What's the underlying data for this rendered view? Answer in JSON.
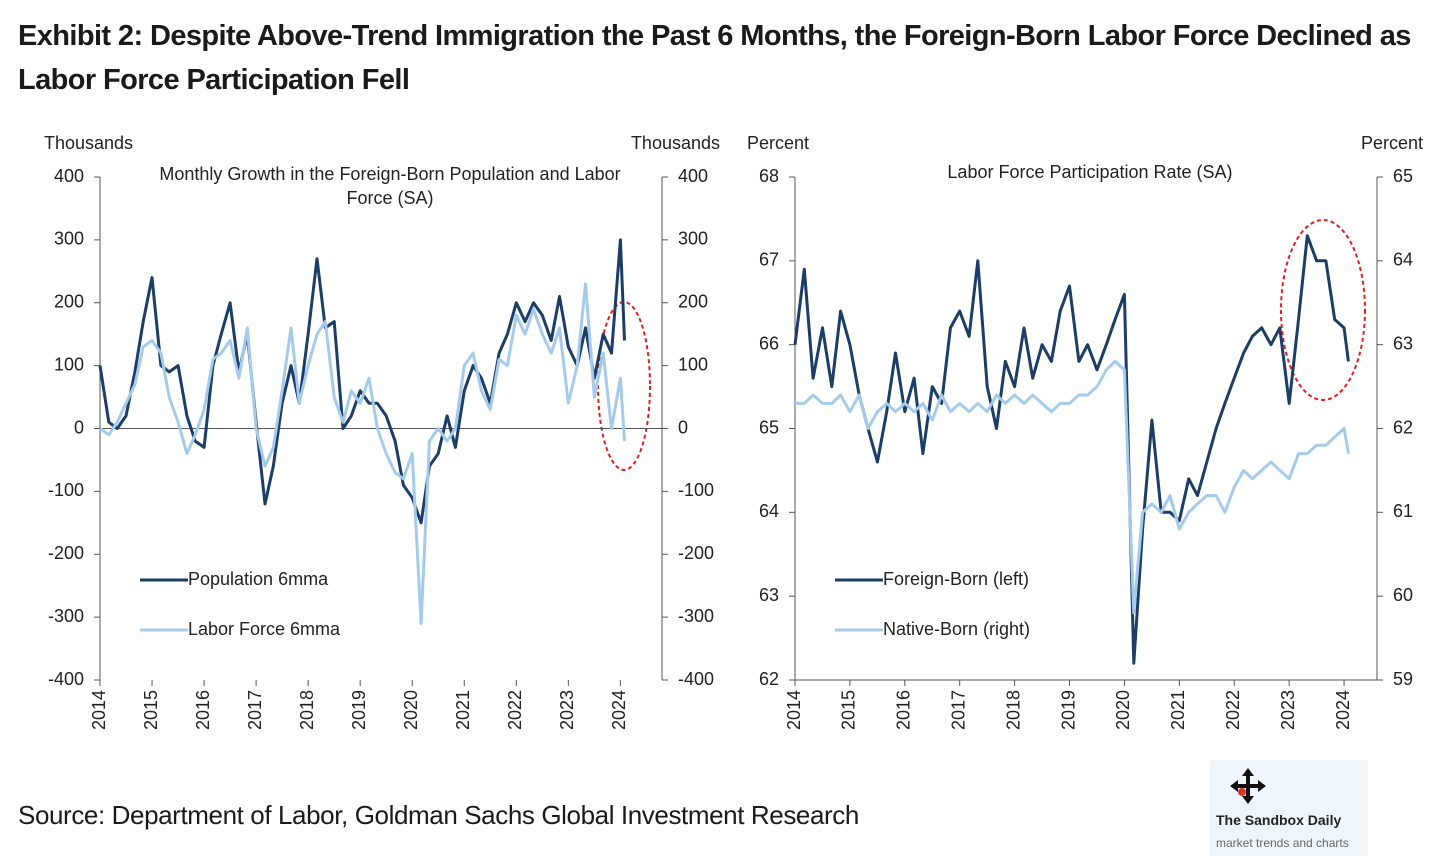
{
  "title": "Exhibit 2: Despite Above-Trend Immigration the Past 6 Months, the Foreign-Born Labor Force Declined as Labor Force Participation Fell",
  "source": "Source: Department of Labor, Goldman Sachs Global Investment Research",
  "watermark": {
    "name": "The Sandbox Daily",
    "tagline": "market trends and charts"
  },
  "chart_data": [
    {
      "type": "line",
      "title": "Monthly Growth in the Foreign-Born Population and Labor Force (SA)",
      "ylabel": "Thousands",
      "y2label": "Thousands",
      "legend": "lower left",
      "xlim": [
        2014,
        2024.8
      ],
      "xticks": [
        2014,
        2015,
        2016,
        2017,
        2018,
        2019,
        2020,
        2021,
        2022,
        2023,
        2024
      ],
      "ylim": [
        -400,
        400
      ],
      "yticks": [
        -400,
        -300,
        -200,
        -100,
        0,
        100,
        200,
        300,
        400
      ],
      "y2lim": [
        -400,
        400
      ],
      "y2ticks": [
        -400,
        -300,
        -200,
        -100,
        0,
        100,
        200,
        300,
        400
      ],
      "x": [
        2014,
        2014.17,
        2014.33,
        2014.5,
        2014.67,
        2014.83,
        2015,
        2015.17,
        2015.33,
        2015.5,
        2015.67,
        2015.83,
        2016,
        2016.17,
        2016.33,
        2016.5,
        2016.67,
        2016.83,
        2017,
        2017.17,
        2017.33,
        2017.5,
        2017.67,
        2017.83,
        2018,
        2018.17,
        2018.33,
        2018.5,
        2018.67,
        2018.83,
        2019,
        2019.17,
        2019.33,
        2019.5,
        2019.67,
        2019.83,
        2020,
        2020.17,
        2020.33,
        2020.5,
        2020.67,
        2020.83,
        2021,
        2021.17,
        2021.33,
        2021.5,
        2021.67,
        2021.83,
        2022,
        2022.17,
        2022.33,
        2022.5,
        2022.67,
        2022.83,
        2023,
        2023.17,
        2023.33,
        2023.5,
        2023.67,
        2023.83,
        2024,
        2024.08
      ],
      "series": [
        {
          "name": "Population 6mma",
          "color": "#1b3d66",
          "values": [
            100,
            10,
            0,
            20,
            90,
            170,
            240,
            100,
            90,
            100,
            20,
            -20,
            -30,
            100,
            150,
            200,
            90,
            150,
            10,
            -120,
            -60,
            40,
            100,
            40,
            150,
            270,
            160,
            170,
            0,
            20,
            60,
            40,
            40,
            20,
            -20,
            -90,
            -110,
            -150,
            -60,
            -40,
            20,
            -30,
            60,
            100,
            80,
            40,
            120,
            150,
            200,
            170,
            200,
            180,
            140,
            210,
            130,
            100,
            160,
            80,
            150,
            120,
            300,
            140
          ]
        },
        {
          "name": "Labor Force 6mma",
          "color": "#a6cbea",
          "values": [
            0,
            -10,
            10,
            40,
            70,
            130,
            140,
            120,
            50,
            10,
            -40,
            -10,
            30,
            110,
            120,
            140,
            80,
            160,
            0,
            -60,
            -30,
            60,
            160,
            40,
            100,
            150,
            170,
            50,
            10,
            60,
            40,
            80,
            0,
            -40,
            -70,
            -80,
            -40,
            -310,
            -20,
            0,
            -20,
            0,
            100,
            120,
            60,
            30,
            110,
            100,
            180,
            150,
            190,
            150,
            120,
            160,
            40,
            100,
            230,
            50,
            120,
            0,
            80,
            -20
          ]
        }
      ]
    },
    {
      "type": "line",
      "title": "Labor Force Participation Rate (SA)",
      "ylabel": "Percent",
      "y2label": "Percent",
      "legend": "lower left",
      "xlim": [
        2014,
        2024.6
      ],
      "xticks": [
        2014,
        2015,
        2016,
        2017,
        2018,
        2019,
        2020,
        2021,
        2022,
        2023,
        2024
      ],
      "ylim": [
        62,
        68
      ],
      "yticks": [
        62,
        63,
        64,
        65,
        66,
        67,
        68
      ],
      "y2lim": [
        59,
        65
      ],
      "y2ticks": [
        59,
        60,
        61,
        62,
        63,
        64,
        65
      ],
      "x": [
        2014,
        2014.17,
        2014.33,
        2014.5,
        2014.67,
        2014.83,
        2015,
        2015.17,
        2015.33,
        2015.5,
        2015.67,
        2015.83,
        2016,
        2016.17,
        2016.33,
        2016.5,
        2016.67,
        2016.83,
        2017,
        2017.17,
        2017.33,
        2017.5,
        2017.67,
        2017.83,
        2018,
        2018.17,
        2018.33,
        2018.5,
        2018.67,
        2018.83,
        2019,
        2019.17,
        2019.33,
        2019.5,
        2019.67,
        2019.83,
        2020,
        2020.17,
        2020.33,
        2020.5,
        2020.67,
        2020.83,
        2021,
        2021.17,
        2021.33,
        2021.5,
        2021.67,
        2021.83,
        2022,
        2022.17,
        2022.33,
        2022.5,
        2022.67,
        2022.83,
        2023,
        2023.17,
        2023.33,
        2023.5,
        2023.67,
        2023.83,
        2024,
        2024.08
      ],
      "series": [
        {
          "name": "Foreign-Born (left)",
          "color": "#1b3d66",
          "values": [
            66.0,
            66.9,
            65.6,
            66.2,
            65.5,
            66.4,
            66.0,
            65.4,
            65.0,
            64.6,
            65.2,
            65.9,
            65.2,
            65.6,
            64.7,
            65.5,
            65.3,
            66.2,
            66.4,
            66.1,
            67.0,
            65.5,
            65.0,
            65.8,
            65.5,
            66.2,
            65.6,
            66.0,
            65.8,
            66.4,
            66.7,
            65.8,
            66.0,
            65.7,
            66.0,
            66.3,
            66.6,
            62.2,
            63.8,
            65.1,
            64.0,
            64.0,
            63.9,
            64.4,
            64.2,
            64.6,
            65.0,
            65.3,
            65.6,
            65.9,
            66.1,
            66.2,
            66.0,
            66.2,
            65.3,
            66.3,
            67.3,
            67.0,
            67.0,
            66.3,
            66.2,
            65.8
          ]
        },
        {
          "name": "Native-Born (right)",
          "color": "#a6cbea",
          "axis": "y2",
          "values": [
            62.3,
            62.3,
            62.4,
            62.3,
            62.3,
            62.4,
            62.2,
            62.4,
            62.0,
            62.2,
            62.3,
            62.2,
            62.3,
            62.2,
            62.3,
            62.1,
            62.4,
            62.2,
            62.3,
            62.2,
            62.3,
            62.2,
            62.4,
            62.3,
            62.4,
            62.3,
            62.4,
            62.3,
            62.2,
            62.3,
            62.3,
            62.4,
            62.4,
            62.5,
            62.7,
            62.8,
            62.7,
            59.8,
            61.0,
            61.1,
            61.0,
            61.2,
            60.8,
            61.0,
            61.1,
            61.2,
            61.2,
            61.0,
            61.3,
            61.5,
            61.4,
            61.5,
            61.6,
            61.5,
            61.4,
            61.7,
            61.7,
            61.8,
            61.8,
            61.9,
            62.0,
            61.7
          ]
        }
      ]
    }
  ]
}
